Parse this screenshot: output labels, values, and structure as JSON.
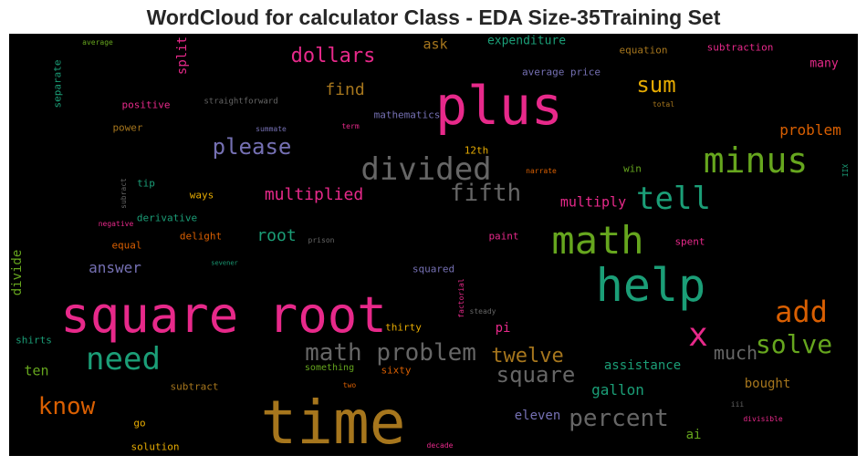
{
  "chart_data": {
    "type": "wordcloud",
    "title": "WordCloud for calculator Class - EDA Size-35Training Set",
    "background": "#000000",
    "words": [
      {
        "text": "square root",
        "color": "#e7298a"
      },
      {
        "text": "time",
        "color": "#a6761d"
      },
      {
        "text": "plus",
        "color": "#e7298a"
      },
      {
        "text": "help",
        "color": "#1b9e77"
      },
      {
        "text": "math",
        "color": "#66a61e"
      },
      {
        "text": "divided",
        "color": "#666666"
      },
      {
        "text": "minus",
        "color": "#66a61e"
      },
      {
        "text": "math problem",
        "color": "#666666"
      },
      {
        "text": "need",
        "color": "#1b9e77"
      },
      {
        "text": "tell",
        "color": "#1b9e77"
      },
      {
        "text": "percent",
        "color": "#666666"
      },
      {
        "text": "add",
        "color": "#d95f02"
      },
      {
        "text": "solve",
        "color": "#66a61e"
      },
      {
        "text": "x",
        "color": "#e7298a"
      },
      {
        "text": "know",
        "color": "#d95f02"
      },
      {
        "text": "fifth",
        "color": "#666666"
      },
      {
        "text": "please",
        "color": "#7570b3"
      },
      {
        "text": "square",
        "color": "#666666"
      },
      {
        "text": "twelve",
        "color": "#a6761d"
      },
      {
        "text": "dollars",
        "color": "#e7298a"
      },
      {
        "text": "sum",
        "color": "#e6ab02"
      },
      {
        "text": "multiplied",
        "color": "#e7298a"
      },
      {
        "text": "much",
        "color": "#666666"
      },
      {
        "text": "find",
        "color": "#a6761d"
      },
      {
        "text": "root",
        "color": "#1b9e77"
      },
      {
        "text": "answer",
        "color": "#7570b3"
      },
      {
        "text": "gallon",
        "color": "#1b9e77"
      },
      {
        "text": "multiply",
        "color": "#e7298a"
      },
      {
        "text": "problem",
        "color": "#d95f02"
      },
      {
        "text": "eleven",
        "color": "#7570b3"
      },
      {
        "text": "ask",
        "color": "#a6761d"
      },
      {
        "text": "ten",
        "color": "#66a61e"
      },
      {
        "text": "expenditure",
        "color": "#1b9e77"
      },
      {
        "text": "assistance",
        "color": "#1b9e77"
      },
      {
        "text": "bought",
        "color": "#a6761d"
      },
      {
        "text": "many",
        "color": "#e7298a"
      },
      {
        "text": "ai",
        "color": "#66a61e"
      },
      {
        "text": "pi",
        "color": "#e7298a"
      },
      {
        "text": "divide",
        "color": "#66a61e"
      },
      {
        "text": "split",
        "color": "#e7298a"
      },
      {
        "text": "mathematics",
        "color": "#7570b3"
      },
      {
        "text": "average price",
        "color": "#7570b3"
      },
      {
        "text": "equation",
        "color": "#a6761d"
      },
      {
        "text": "subtraction",
        "color": "#e7298a"
      },
      {
        "text": "positive",
        "color": "#e7298a"
      },
      {
        "text": "power",
        "color": "#a6761d"
      },
      {
        "text": "derivative",
        "color": "#1b9e77"
      },
      {
        "text": "ways",
        "color": "#e6ab02"
      },
      {
        "text": "tip",
        "color": "#1b9e77"
      },
      {
        "text": "equal",
        "color": "#d95f02"
      },
      {
        "text": "delight",
        "color": "#d95f02"
      },
      {
        "text": "squared",
        "color": "#7570b3"
      },
      {
        "text": "paint",
        "color": "#e7298a"
      },
      {
        "text": "spent",
        "color": "#e7298a"
      },
      {
        "text": "shirts",
        "color": "#1b9e77"
      },
      {
        "text": "thirty",
        "color": "#e6ab02"
      },
      {
        "text": "sixty",
        "color": "#d95f02"
      },
      {
        "text": "something",
        "color": "#66a61e"
      },
      {
        "text": "subtract",
        "color": "#a6761d"
      },
      {
        "text": "go",
        "color": "#e6ab02"
      },
      {
        "text": "solution",
        "color": "#e6ab02"
      },
      {
        "text": "win",
        "color": "#66a61e"
      },
      {
        "text": "separate",
        "color": "#1b9e77"
      },
      {
        "text": "12th",
        "color": "#e6ab02"
      },
      {
        "text": "average",
        "color": "#66a61e"
      },
      {
        "text": "straightforward",
        "color": "#666666"
      },
      {
        "text": "summate",
        "color": "#7570b3"
      },
      {
        "text": "term",
        "color": "#e7298a"
      },
      {
        "text": "total",
        "color": "#a6761d"
      },
      {
        "text": "narrate",
        "color": "#d95f02"
      },
      {
        "text": "XII",
        "color": "#1b9e77"
      },
      {
        "text": "subract",
        "color": "#666666"
      },
      {
        "text": "negative",
        "color": "#e7298a"
      },
      {
        "text": "sevener",
        "color": "#1b9e77"
      },
      {
        "text": "prison",
        "color": "#666666"
      },
      {
        "text": "factorial",
        "color": "#e7298a"
      },
      {
        "text": "steady",
        "color": "#666666"
      },
      {
        "text": "two",
        "color": "#d95f02"
      },
      {
        "text": "iii",
        "color": "#666666"
      },
      {
        "text": "divisible",
        "color": "#e7298a"
      },
      {
        "text": "decade",
        "color": "#e7298a"
      }
    ]
  }
}
